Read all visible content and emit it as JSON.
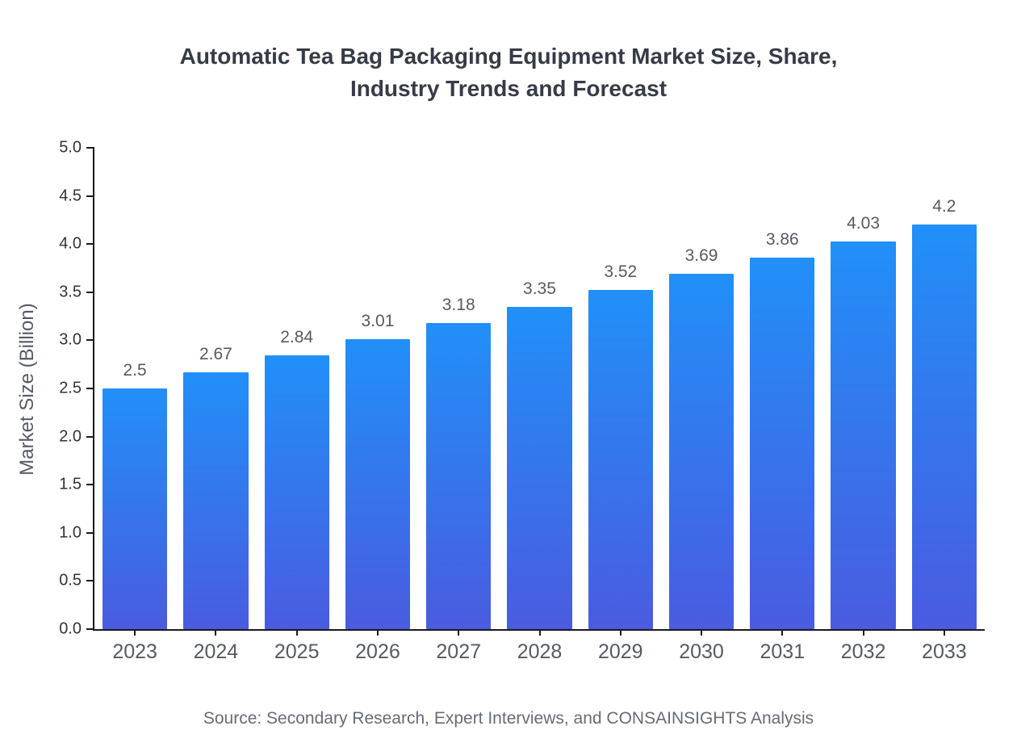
{
  "title": {
    "line1": "Automatic Tea Bag Packaging Equipment Market Size, Share,",
    "line2": "Industry Trends and Forecast"
  },
  "source": "Source: Secondary Research, Expert Interviews, and CONSAINSIGHTS Analysis",
  "chart_data": {
    "type": "bar",
    "title": "Automatic Tea Bag Packaging Equipment Market Size, Share, Industry Trends and Forecast",
    "categories": [
      "2023",
      "2024",
      "2025",
      "2026",
      "2027",
      "2028",
      "2029",
      "2030",
      "2031",
      "2032",
      "2033"
    ],
    "values": [
      2.5,
      2.67,
      2.84,
      3.01,
      3.18,
      3.35,
      3.52,
      3.69,
      3.86,
      4.03,
      4.2
    ],
    "xlabel": "",
    "ylabel": "Market Size (Billion)",
    "ylim": [
      0,
      5
    ],
    "ytick_step": 0.5,
    "grid": false,
    "legend": false,
    "colors": {
      "bar_top": "#2190f8",
      "bar_bottom": "#4a5be0",
      "axis": "#1a1a1a",
      "value_labels": "#555a63",
      "tick_labels": "#555a63",
      "title": "#363c46"
    }
  }
}
